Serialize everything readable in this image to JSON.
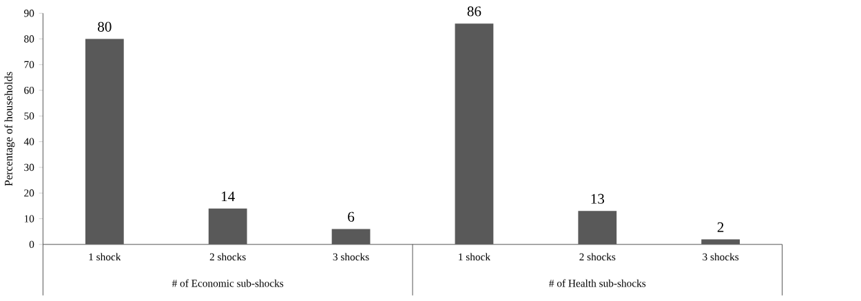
{
  "chart_data": {
    "type": "bar",
    "ylabel": "Percentage of households",
    "categories": [
      "1 shock",
      "2 shocks",
      "3 shocks",
      "1 shock",
      "2 shocks",
      "3 shocks"
    ],
    "values": [
      80,
      14,
      6,
      86,
      13,
      2
    ],
    "color": "#595959",
    "data_labels": true,
    "ylim": [
      0,
      90
    ],
    "yticks": [
      0,
      10,
      20,
      30,
      40,
      50,
      60,
      70,
      80,
      90
    ],
    "grid": false,
    "annotations": [
      "# of Economic sub-shocks",
      "# of Health sub-shocks"
    ]
  }
}
